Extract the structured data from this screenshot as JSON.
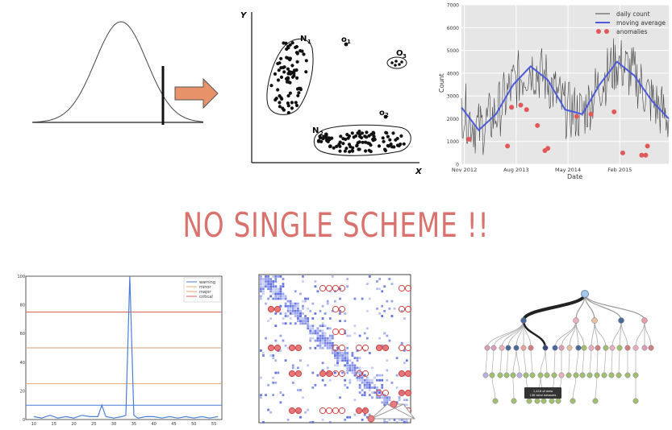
{
  "headline": "NO SINGLE SCHEME !!",
  "colors": {
    "headline": "#d9716c",
    "arrow_fill": "#e8926a",
    "anomaly": "#e05a5a",
    "moving_average": "#4b5bd9",
    "daily_count": "#444444",
    "warning": "#4a7fd8",
    "minor": "#e0b070",
    "major": "#e0a070",
    "critical": "#e06060"
  },
  "clusters_panel": {
    "axis_y": "Y",
    "axis_x": "X",
    "labels": {
      "n1": "N",
      "n1_sub": "1",
      "n2": "N",
      "n2_sub": "2",
      "o1": "o",
      "o1_sub": "1",
      "o2": "o",
      "o2_sub": "2",
      "o3": "O",
      "o3_sub": "3"
    }
  },
  "chart_data": [
    {
      "type": "line",
      "xlabel": "Date",
      "ylabel": "Count",
      "x_ticks": [
        "Nov 2012",
        "Aug 2013",
        "May 2014",
        "Feb 2015"
      ],
      "y_ticks": [
        0,
        1000,
        2000,
        3000,
        4000,
        5000,
        6000,
        7000
      ],
      "ylim": [
        0,
        7000
      ],
      "legend": [
        "daily count",
        "moving average",
        "anomalies"
      ],
      "legend_position": "top-right",
      "grid": true,
      "series": [
        {
          "name": "moving average",
          "x": [
            0,
            3,
            6,
            9,
            12,
            15,
            18,
            21,
            24,
            27,
            30,
            33,
            36
          ],
          "values": [
            2500,
            1500,
            2200,
            3500,
            4300,
            3700,
            2400,
            2200,
            3500,
            4500,
            3900,
            2800,
            2000
          ]
        }
      ],
      "anomalies": {
        "x": [
          1.3,
          8.0,
          8.7,
          10.3,
          11.3,
          13.2,
          14.5,
          15.0,
          20.0,
          22.5,
          26.5,
          28.0,
          31.3,
          32.0,
          32.3
        ],
        "values": [
          1100,
          800,
          2500,
          2600,
          2400,
          1700,
          600,
          700,
          2100,
          2200,
          2300,
          500,
          400,
          400,
          800
        ]
      }
    },
    {
      "type": "line",
      "legend": [
        "warning",
        "minor",
        "major",
        "critical"
      ],
      "legend_position": "top-right",
      "x_ticks": [
        10,
        15,
        20,
        25,
        30,
        35,
        40,
        45,
        50,
        55
      ],
      "y_ticks": [
        0,
        20,
        40,
        60,
        80,
        100
      ],
      "ylim": [
        0,
        100
      ],
      "thresholds": [
        {
          "name": "warning",
          "value": 10
        },
        {
          "name": "minor",
          "value": 25
        },
        {
          "name": "major",
          "value": 50
        },
        {
          "name": "critical",
          "value": 75
        }
      ],
      "series": [
        {
          "name": "signal",
          "x": [
            10,
            12,
            14,
            16,
            18,
            20,
            22,
            24,
            26,
            27,
            28,
            30,
            32,
            33,
            34,
            35,
            36,
            38,
            40,
            42,
            44,
            46,
            48,
            50,
            52,
            54,
            56
          ],
          "values": [
            2,
            1,
            3,
            1,
            2,
            1,
            3,
            2,
            2,
            10,
            2,
            1,
            2,
            3,
            100,
            3,
            1,
            2,
            2,
            1,
            2,
            1,
            2,
            1,
            2,
            1,
            2
          ]
        }
      ]
    }
  ],
  "tree_panel": {
    "tooltip_line1": "1,418 of data",
    "tooltip_line2": "136 total datasets"
  }
}
